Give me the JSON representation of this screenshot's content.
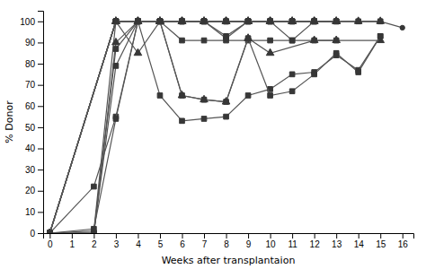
{
  "chart_data": {
    "type": "line",
    "xlabel": "Weeks after transplantaion",
    "ylabel": "% Donor",
    "xlim": [
      -0.3,
      16.5
    ],
    "ylim": [
      0,
      105
    ],
    "xticks": [
      0,
      1,
      2,
      3,
      4,
      5,
      6,
      7,
      8,
      9,
      10,
      11,
      12,
      13,
      14,
      15,
      16
    ],
    "yticks": [
      0,
      10,
      20,
      30,
      40,
      50,
      60,
      70,
      80,
      90,
      100
    ],
    "grid": false,
    "color": "#555555",
    "series": [
      {
        "x": [
          0,
          2,
          3,
          4,
          5,
          6,
          7,
          8,
          9,
          10,
          11,
          12,
          13,
          14,
          15,
          16
        ],
        "values": [
          0,
          1,
          100,
          100,
          100,
          100,
          100,
          100,
          100,
          100,
          100,
          100,
          100,
          100,
          100,
          97
        ],
        "marker": "circle"
      },
      {
        "x": [
          0,
          3,
          4,
          5,
          6,
          7,
          8,
          9,
          10,
          11,
          12,
          13,
          14,
          15
        ],
        "values": [
          0,
          100,
          100,
          100,
          100,
          100,
          100,
          100,
          100,
          100,
          100,
          100,
          100,
          100
        ],
        "marker": "triangle"
      },
      {
        "x": [
          0,
          3,
          4,
          5,
          6,
          7,
          8,
          9,
          10,
          11,
          12,
          13,
          14,
          15
        ],
        "values": [
          0,
          100,
          100,
          100,
          100,
          100,
          100,
          100,
          100,
          100,
          100,
          100,
          100,
          100
        ],
        "marker": "square"
      },
      {
        "x": [
          0,
          2,
          3,
          4,
          5,
          6,
          7,
          8,
          9,
          10,
          11,
          12,
          13
        ],
        "values": [
          0,
          0,
          90,
          100,
          100,
          100,
          100,
          100,
          100,
          100,
          100,
          100,
          100
        ],
        "marker": "triangle"
      },
      {
        "x": [
          0,
          3,
          4,
          5,
          6,
          7,
          8,
          9,
          10,
          11,
          12,
          13
        ],
        "values": [
          0,
          100,
          100,
          100,
          100,
          100,
          100,
          100,
          100,
          100,
          100,
          100
        ],
        "marker": "square"
      },
      {
        "x": [
          0,
          3,
          4,
          5,
          6,
          7,
          8,
          9,
          10,
          11,
          12,
          13
        ],
        "values": [
          0,
          100,
          100,
          100,
          100,
          100,
          100,
          100,
          100,
          100,
          100,
          100
        ],
        "marker": "triangle"
      },
      {
        "x": [
          0,
          3,
          4,
          5,
          6,
          7,
          8,
          9,
          10,
          11,
          12
        ],
        "values": [
          0,
          100,
          100,
          100,
          100,
          100,
          100,
          100,
          100,
          100,
          100
        ],
        "marker": "square"
      },
      {
        "x": [
          0,
          2,
          3,
          4,
          5,
          6,
          7,
          8,
          9,
          10,
          12
        ],
        "values": [
          0,
          0,
          87,
          100,
          100,
          100,
          100,
          93,
          100,
          100,
          100
        ],
        "marker": "square"
      },
      {
        "x": [
          0,
          3,
          4,
          5,
          6,
          7,
          8,
          9,
          10,
          11,
          12
        ],
        "values": [
          0,
          100,
          100,
          100,
          100,
          100,
          100,
          100,
          100,
          100,
          100
        ],
        "marker": "square"
      },
      {
        "x": [
          0,
          2,
          3,
          4,
          5,
          6,
          7,
          8,
          9,
          10,
          11,
          12,
          13
        ],
        "values": [
          0,
          0,
          79,
          100,
          100,
          100,
          100,
          92,
          100,
          100,
          91,
          100,
          100
        ],
        "marker": "square"
      },
      {
        "x": [
          0,
          2,
          3,
          4,
          5,
          6,
          7,
          8,
          9,
          10,
          11,
          12,
          13
        ],
        "values": [
          0,
          22,
          55,
          100,
          100,
          91,
          91,
          91,
          91,
          91,
          91,
          91,
          91
        ],
        "marker": "square"
      },
      {
        "x": [
          0,
          3,
          4,
          5,
          6,
          7,
          8,
          9,
          10,
          12,
          13,
          15
        ],
        "values": [
          0,
          100,
          85,
          100,
          65,
          63,
          62,
          92,
          85,
          91,
          91,
          91
        ],
        "marker": "triangle"
      },
      {
        "x": [
          0,
          2,
          3,
          4,
          5,
          6,
          7,
          8,
          9,
          10,
          11,
          12,
          13,
          14,
          15
        ],
        "values": [
          0,
          2,
          54,
          100,
          65,
          53,
          54,
          55,
          65,
          68,
          75,
          76,
          84,
          77,
          93
        ],
        "marker": "square"
      },
      {
        "x": [
          0,
          3,
          4,
          5,
          6,
          7,
          8,
          9,
          10,
          11,
          12,
          13,
          14,
          15
        ],
        "values": [
          0,
          100,
          100,
          100,
          65,
          63,
          62,
          92,
          65,
          67,
          75,
          85,
          76,
          93
        ],
        "marker": "square"
      }
    ]
  }
}
